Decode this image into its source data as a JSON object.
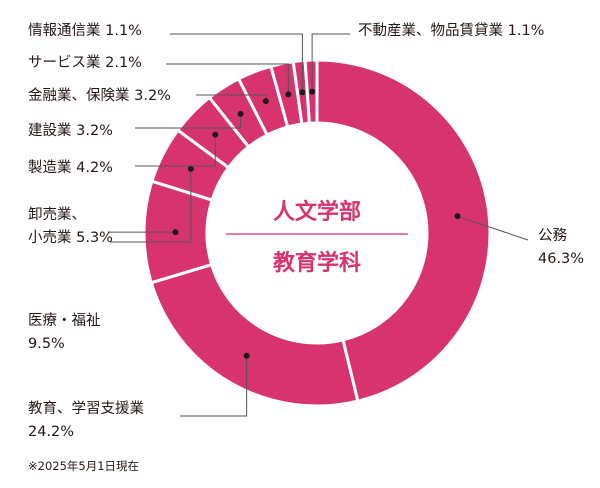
{
  "chart_data": {
    "type": "pie",
    "center_title": "人文学部",
    "center_subtitle": "教育学科",
    "slice_color": "#d7336f",
    "separator_color": "#ffffff",
    "line_color": "#555555",
    "note": "※2025年5月1日現在",
    "slices": [
      {
        "label": "公務",
        "value": 46.3,
        "display": [
          "公務",
          "46.3%"
        ]
      },
      {
        "label": "教育、学習支援業",
        "value": 24.2,
        "display": [
          "教育、学習支援業",
          "24.2%"
        ]
      },
      {
        "label": "医療・福祉",
        "value": 9.5,
        "display": [
          "医療・福祉",
          "9.5%"
        ]
      },
      {
        "label": "卸売業、小売業",
        "value": 5.3,
        "display": [
          "卸売業、",
          "小売業 5.3%"
        ]
      },
      {
        "label": "製造業",
        "value": 4.2,
        "display": [
          "製造業 4.2%"
        ]
      },
      {
        "label": "建設業",
        "value": 3.2,
        "display": [
          "建設業 3.2%"
        ]
      },
      {
        "label": "金融業、保険業",
        "value": 3.2,
        "display": [
          "金融業、保険業 3.2%"
        ]
      },
      {
        "label": "サービス業",
        "value": 2.1,
        "display": [
          "サービス業 2.1%"
        ]
      },
      {
        "label": "情報通信業",
        "value": 1.1,
        "display": [
          "情報通信業 1.1%"
        ]
      },
      {
        "label": "不動産業、物品賃貸業",
        "value": 1.1,
        "display": [
          "不動産業、物品賃貸業 1.1%"
        ]
      }
    ]
  }
}
